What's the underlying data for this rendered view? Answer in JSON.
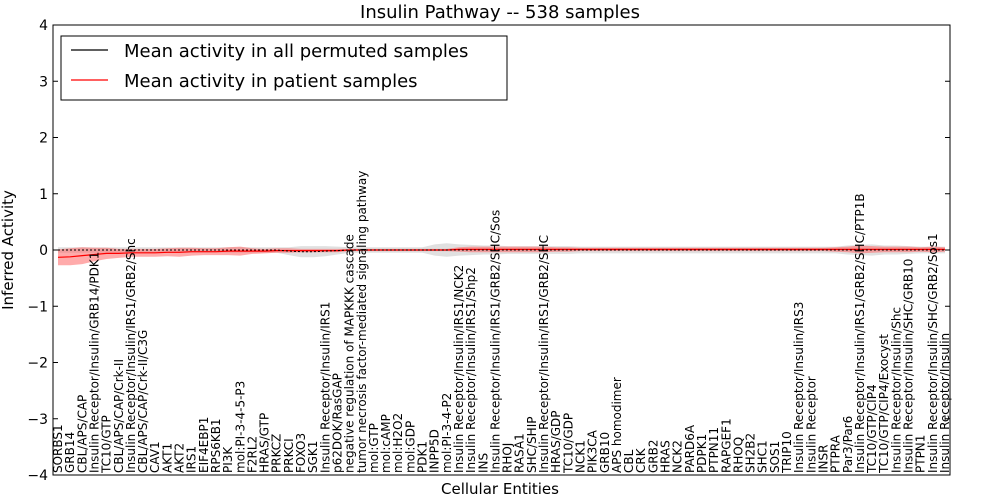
{
  "chart_data": {
    "type": "line",
    "title": "Insulin Pathway -- 538 samples",
    "xlabel": "Cellular Entities",
    "ylabel": "Inferred Activity",
    "ylim": [
      -4,
      4
    ],
    "yticks": [
      "4",
      "3",
      "2",
      "1",
      "0",
      "−1",
      "−2",
      "−3",
      "−4"
    ],
    "legend_position": "top-left",
    "series": [
      {
        "name": "Mean activity in all permuted samples",
        "color": "#000000",
        "band_color": "#bbbbbb"
      },
      {
        "name": "Mean activity in patient samples",
        "color": "#ff0000",
        "band_color": "#ff6666"
      }
    ],
    "categories": [
      "SORBS1",
      "GRB14",
      "CBL/APS/CAP",
      "Insulin Receptor/Insulin/GRB14/PDK1",
      "TC10/GTP",
      "CBL/APS/CAP/Crk-II",
      "Insulin Receptor/Insulin/IRS1/GRB2/Shc",
      "CBL/APS/CAP/Crk-II/C3G",
      "CAV1",
      "AKT1",
      "AKT2",
      "IRS1",
      "EIF4EBP1",
      "RPS6KB1",
      "PI3K",
      "mol:PI-3-4-5-P3",
      "F2RL2",
      "HRAS/GTP",
      "PRKCZ",
      "PRKCI",
      "FOXO3",
      "SGK1",
      "Insulin Receptor/Insulin/IRS1",
      "p62DOK/RasGAP",
      "negative regulation of MAPKKK cascade",
      "tumor necrosis factor-mediated signaling pathway",
      "mol:GTP",
      "mol:cAMP",
      "mol:H2O2",
      "mol:GDP",
      "PDK1",
      "INPP5D",
      "mol:PI-3-4-P2",
      "Insulin Receptor/Insulin/IRS1/NCK2",
      "Insulin Receptor/Insulin/IRS1/Shp2",
      "INS",
      "Insulin Receptor/Insulin/IRS1/GRB2/SHC/Sos",
      "RHOJ",
      "RASA1",
      "SHC/SHIP",
      "Insulin Receptor/Insulin/IRS1/GRB2/SHC",
      "HRAS/GDP",
      "TC10/GDP",
      "NCK1",
      "PIK3CA",
      "GRB10",
      "APS homodimer",
      "CBL",
      "CRK",
      "GRB2",
      "HRAS",
      "NCK2",
      "PARD6A",
      "PDPK1",
      "PTPN11",
      "RAPGEF1",
      "RHOQ",
      "SH2B2",
      "SHC1",
      "SOS1",
      "TRIP10",
      "Insulin Receptor/Insulin/IRS3",
      "Insulin Receptor",
      "INSR",
      "PTPRA",
      "Par3/Par6",
      "Insulin Receptor/Insulin/IRS1/GRB2/SHC/PTP1B",
      "TC10/GTP/CIP4",
      "TC10/GTP/CIP4/Exocyst",
      "Insulin Receptor/Insulin/Shc",
      "Insulin Receptor/Insulin/SHC/GRB10",
      "PTPN1",
      "Insulin Receptor/Insulin/SHC/GRB2/Sos1",
      "Insulin Receptor/Insulin"
    ],
    "patient_mean": [
      -0.13,
      -0.12,
      -0.1,
      -0.08,
      -0.06,
      -0.06,
      -0.05,
      -0.05,
      -0.05,
      -0.04,
      -0.04,
      -0.03,
      -0.03,
      -0.03,
      -0.02,
      -0.02,
      -0.02,
      -0.02,
      -0.01,
      -0.01,
      -0.01,
      -0.01,
      -0.01,
      -0.01,
      0,
      0,
      0,
      0,
      0,
      0,
      0,
      0,
      0,
      0.01,
      0.01,
      0.01,
      0.01,
      0.01,
      0.01,
      0.01,
      0.01,
      0.01,
      0.01,
      0.01,
      0.01,
      0.01,
      0.01,
      0.01,
      0.01,
      0.01,
      0.01,
      0.01,
      0.01,
      0.01,
      0.01,
      0.01,
      0.01,
      0.01,
      0.01,
      0.01,
      0.01,
      0.01,
      0.01,
      0.01,
      0.01,
      0.01,
      0.01,
      0.01,
      0.01,
      0.01,
      0.01,
      0.01,
      0.01,
      0.01
    ],
    "patient_band": [
      0.14,
      0.15,
      0.15,
      0.12,
      0.1,
      0.08,
      0.07,
      0.07,
      0.07,
      0.07,
      0.08,
      0.07,
      0.06,
      0.06,
      0.07,
      0.08,
      0.05,
      0.04,
      0.04,
      0.04,
      0.03,
      0.03,
      0.03,
      0.03,
      0.02,
      0.02,
      0.02,
      0.02,
      0.02,
      0.02,
      0.02,
      0.02,
      0.02,
      0.04,
      0.05,
      0.05,
      0.05,
      0.05,
      0.05,
      0.05,
      0.05,
      0.04,
      0.04,
      0.03,
      0.03,
      0.03,
      0.03,
      0.03,
      0.03,
      0.03,
      0.03,
      0.03,
      0.03,
      0.03,
      0.03,
      0.03,
      0.03,
      0.03,
      0.03,
      0.03,
      0.03,
      0.03,
      0.03,
      0.03,
      0.04,
      0.05,
      0.07,
      0.06,
      0.05,
      0.05,
      0.05,
      0.04,
      0.05,
      0.04
    ],
    "permuted_mean": [
      0,
      0,
      0,
      0,
      0,
      0,
      0,
      0,
      0,
      0,
      0,
      0,
      0,
      0,
      0,
      0,
      0,
      0,
      0,
      -0.02,
      -0.03,
      -0.03,
      -0.02,
      -0.01,
      0,
      0,
      0,
      0,
      0,
      0,
      0,
      0,
      0,
      0,
      0,
      0,
      0,
      0,
      0,
      0,
      0,
      0,
      0,
      0,
      0,
      0,
      0,
      0,
      0,
      0,
      0,
      0,
      0,
      0,
      0,
      0,
      0,
      0,
      0,
      0,
      0,
      0,
      0,
      0,
      0,
      0,
      0,
      0,
      0,
      0,
      0,
      0,
      0,
      0
    ],
    "permuted_band": [
      0.05,
      0.05,
      0.05,
      0.05,
      0.05,
      0.05,
      0.05,
      0.05,
      0.05,
      0.05,
      0.05,
      0.05,
      0.05,
      0.05,
      0.05,
      0.05,
      0.05,
      0.05,
      0.05,
      0.07,
      0.1,
      0.1,
      0.09,
      0.07,
      0.05,
      0.05,
      0.05,
      0.05,
      0.05,
      0.05,
      0.05,
      0.1,
      0.12,
      0.1,
      0.09,
      0.08,
      0.08,
      0.07,
      0.07,
      0.07,
      0.07,
      0.07,
      0.07,
      0.06,
      0.06,
      0.06,
      0.06,
      0.06,
      0.06,
      0.06,
      0.06,
      0.06,
      0.06,
      0.06,
      0.06,
      0.06,
      0.06,
      0.06,
      0.06,
      0.06,
      0.06,
      0.06,
      0.06,
      0.06,
      0.06,
      0.08,
      0.09,
      0.1,
      0.08,
      0.08,
      0.07,
      0.06,
      0.06,
      0.06
    ]
  }
}
